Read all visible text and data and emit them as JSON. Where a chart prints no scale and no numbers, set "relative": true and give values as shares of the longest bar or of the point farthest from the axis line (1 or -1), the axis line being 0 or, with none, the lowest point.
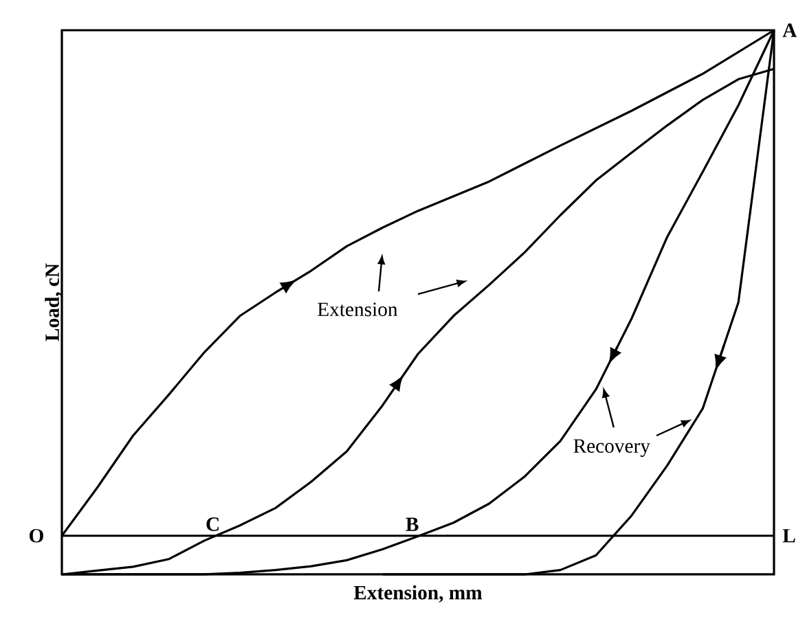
{
  "chart_data": {
    "type": "line",
    "relative": true,
    "xlabel": "Extension, mm",
    "ylabel": "Load, cN",
    "marker": "none",
    "line_style": "solid",
    "categories": [
      null,
      null,
      null,
      null,
      null,
      null,
      null,
      null,
      null,
      null,
      null,
      null,
      null,
      null,
      null,
      null,
      null,
      null,
      null,
      null,
      null
    ],
    "ref_lines": [
      {
        "axis": "y",
        "value": 0.071,
        "color": "#000000"
      }
    ],
    "annotations": [
      "O",
      "C",
      "B",
      "L",
      "A",
      "Extension",
      "Recovery"
    ],
    "series": [
      {
        "color": "#000000",
        "values": [
          0.071,
          0.16,
          0.255,
          0.33,
          0.408,
          0.475,
          0.518,
          0.558,
          0.603,
          0.637,
          0.668,
          0.695,
          0.722,
          0.755,
          0.788,
          0.82,
          0.852,
          0.886,
          0.92,
          0.96,
          1
        ]
      },
      {
        "color": "#000000",
        "values": [
          0,
          0.007,
          0.014,
          0.028,
          0.062,
          0.09,
          0.122,
          0.17,
          0.226,
          0.31,
          0.405,
          0.475,
          0.532,
          0.592,
          0.66,
          0.724,
          0.775,
          0.825,
          0.872,
          0.91,
          0.929
        ]
      },
      {
        "color": "#000000",
        "values": [
          0,
          0,
          0,
          0,
          0,
          0.003,
          0.008,
          0.015,
          0.026,
          0.046,
          0.07,
          0.095,
          0.13,
          0.18,
          0.245,
          0.34,
          0.47,
          0.62,
          0.74,
          0.862,
          1
        ]
      },
      {
        "color": "#000000",
        "values": [
          null,
          null,
          null,
          null,
          null,
          null,
          null,
          null,
          null,
          0,
          0,
          0,
          0,
          0,
          0.008,
          0.035,
          0.108,
          0.2,
          0.305,
          0.5,
          1
        ]
      }
    ]
  }
}
